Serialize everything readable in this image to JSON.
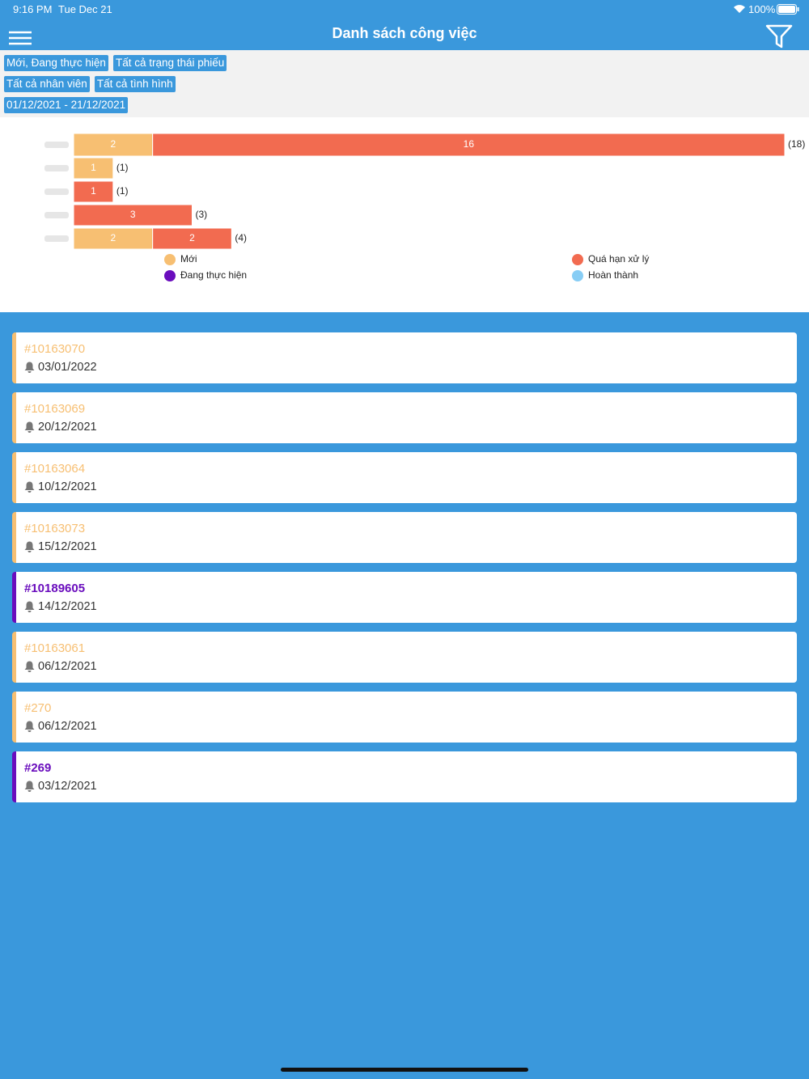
{
  "status_bar": {
    "time": "9:16 PM",
    "date": "Tue Dec 21",
    "battery": "100%"
  },
  "header": {
    "title": "Danh sách công việc"
  },
  "filters": [
    [
      "Mới, Đang thực hiện",
      "Tất cả trạng thái phiếu"
    ],
    [
      "Tất cả nhân viên",
      "Tất cả tình hình"
    ],
    [
      "01/12/2021 - 21/12/2021"
    ]
  ],
  "chart_data": {
    "type": "bar",
    "orientation": "horizontal",
    "stacked": true,
    "categories": [
      null,
      null,
      null,
      null,
      null
    ],
    "series": [
      {
        "name": "Mới",
        "color": "#f7bf72",
        "values": [
          2,
          1,
          null,
          null,
          2
        ]
      },
      {
        "name": "Quá hạn xử lý",
        "color": "#f26b50",
        "values": [
          16,
          null,
          1,
          3,
          2
        ]
      },
      {
        "name": "Đang thực hiện",
        "color": "#6a0dbd",
        "values": [
          null,
          null,
          null,
          null,
          null
        ]
      },
      {
        "name": "Hoàn thành",
        "color": "#87cdf5",
        "values": [
          null,
          null,
          null,
          null,
          null
        ]
      }
    ],
    "total_labels": [
      "(18)",
      "(1)",
      "(1)",
      "(3)",
      "(4)"
    ],
    "xlim": [
      0,
      18
    ],
    "legend": "bottom"
  },
  "tasks": [
    {
      "id": "#10163070",
      "date": "03/01/2022",
      "color": "#f7bf72"
    },
    {
      "id": "#10163069",
      "date": "20/12/2021",
      "color": "#f7bf72"
    },
    {
      "id": "#10163064",
      "date": "10/12/2021",
      "color": "#f7bf72"
    },
    {
      "id": "#10163073",
      "date": "15/12/2021",
      "color": "#f7bf72"
    },
    {
      "id": "#10189605",
      "date": "14/12/2021",
      "color": "#6a0dbd"
    },
    {
      "id": "#10163061",
      "date": "06/12/2021",
      "color": "#f7bf72"
    },
    {
      "id": "#270",
      "date": "06/12/2021",
      "color": "#f7bf72"
    },
    {
      "id": "#269",
      "date": "03/12/2021",
      "color": "#6a0dbd"
    }
  ]
}
